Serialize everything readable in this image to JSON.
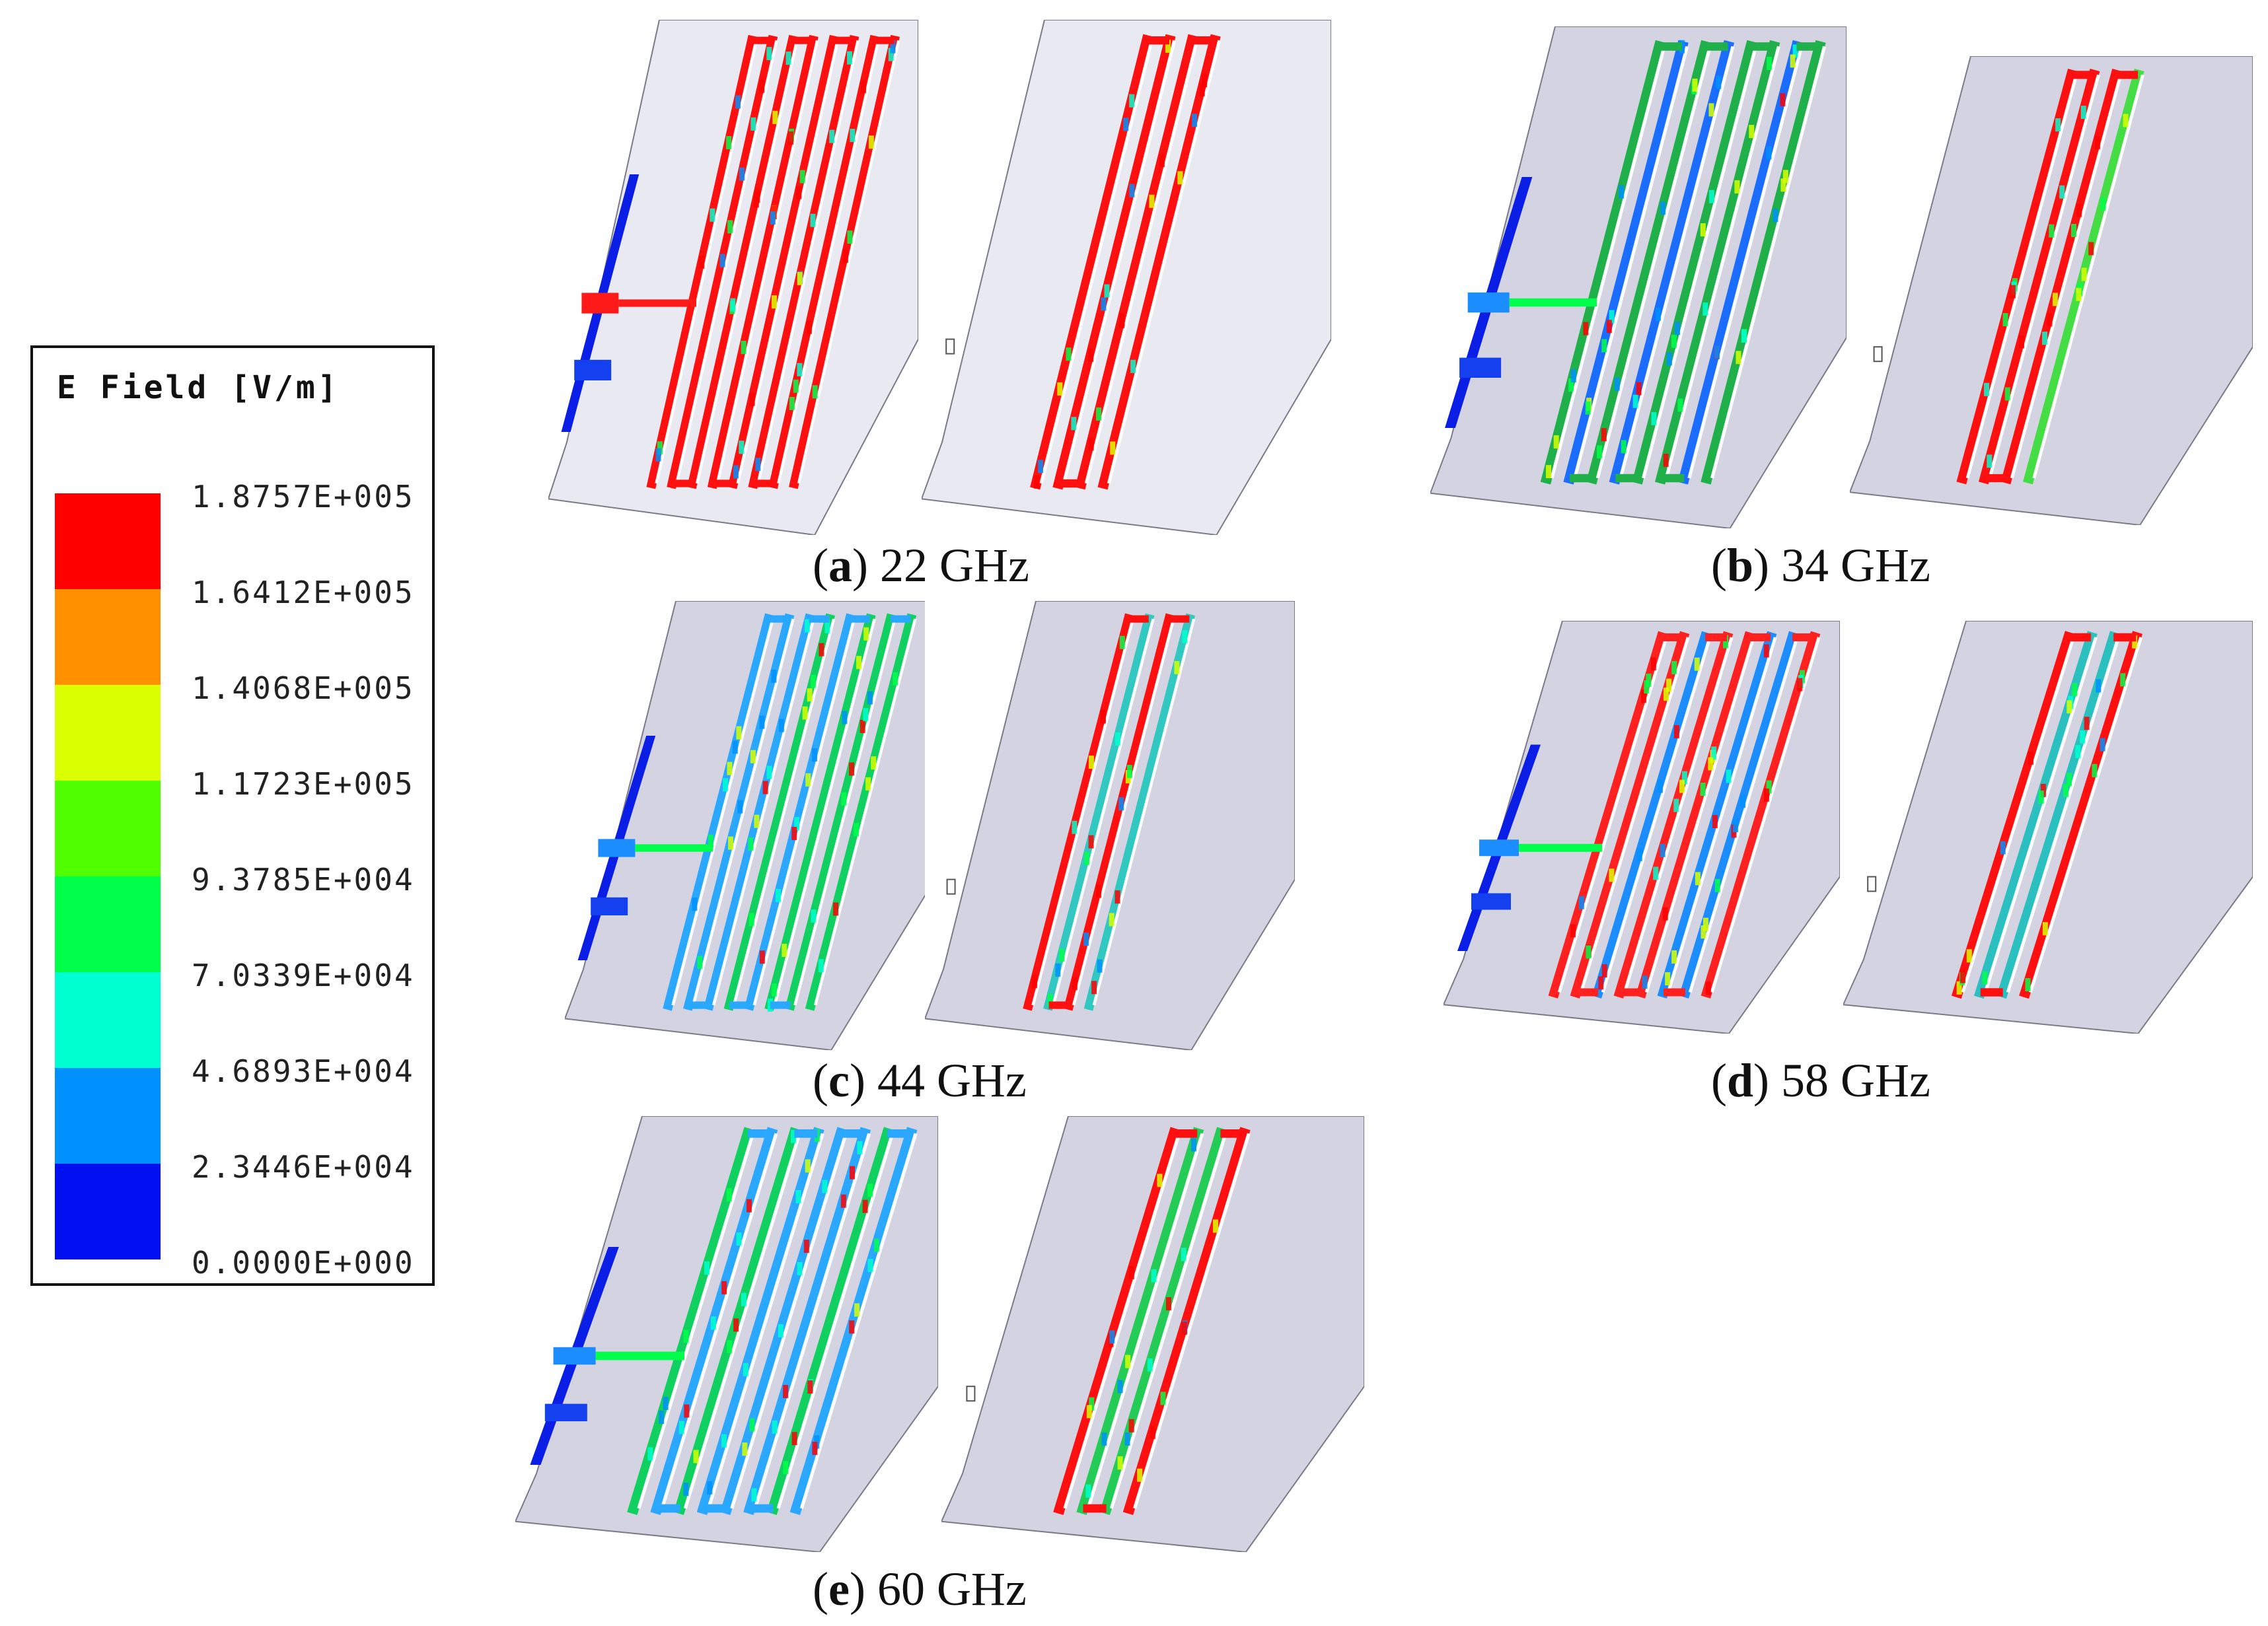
{
  "legend": {
    "title": "E Field [V/m]",
    "ticks": [
      "1.8757E+005",
      "1.6412E+005",
      "1.4068E+005",
      "1.1723E+005",
      "9.3785E+004",
      "7.0339E+004",
      "4.6893E+004",
      "2.3446E+004",
      "0.0000E+000"
    ],
    "colors": [
      "#ff0000",
      "#ff9100",
      "#d9ff00",
      "#52ff00",
      "#00ff4a",
      "#00ffd0",
      "#0091ff",
      "#0010f0"
    ]
  },
  "captions": [
    {
      "letter": "a",
      "text": "22 GHz"
    },
    {
      "letter": "b",
      "text": "34 GHz"
    },
    {
      "letter": "c",
      "text": "44 GHz"
    },
    {
      "letter": "d",
      "text": "58 GHz"
    },
    {
      "letter": "e",
      "text": "60 GHz"
    }
  ]
}
